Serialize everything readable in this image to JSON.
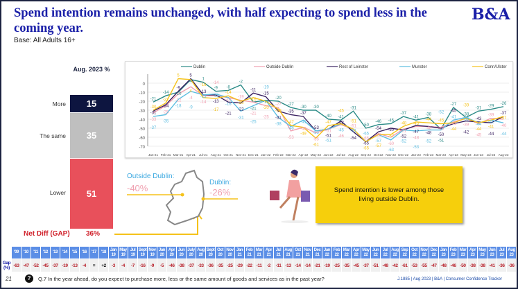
{
  "header": {
    "title": "Spend intention remains unchanged, with half expecting to spend less in the coming year.",
    "base": "Base: All Adults 16+",
    "logo": "B&A"
  },
  "summary": {
    "column_heading": "Aug. 2023 %",
    "rows": [
      {
        "label": "More",
        "value": "15",
        "color": "#0d1540"
      },
      {
        "label": "The same",
        "value": "35",
        "color": "#bfbfbf"
      },
      {
        "label": "Lower",
        "value": "51",
        "color": "#e8505b"
      }
    ],
    "net_label": "Net Diff (GAP)",
    "net_value": "36%"
  },
  "map": {
    "outside_label": "Outside Dublin:",
    "outside_value": "-40%",
    "dublin_label": "Dublin:",
    "dublin_value": "-26%"
  },
  "callout": "Spend intention is lower among those living outside Dublin.",
  "chart_data": {
    "type": "line",
    "ylim": [
      -70,
      10
    ],
    "yticks": [
      0,
      -10,
      -20,
      -30,
      -40,
      -50,
      -60,
      -70
    ],
    "legend": "top",
    "categories": [
      "Jan-21",
      "Feb-21",
      "Mar-21",
      "Apr-21",
      "Jul-21",
      "Aug-21",
      "Oct-21",
      "Nov-21",
      "Dec-21",
      "Jan-22",
      "Feb-22",
      "Mar-22",
      "Apr-22",
      "May-22",
      "Jun-22",
      "Jul-22",
      "Aug-22",
      "Sep-22",
      "Oct-22",
      "Nov-22",
      "Dec-22",
      "Jan-23",
      "Feb-23",
      "Mar-23",
      "Apr-23",
      "May-23",
      "Jun-23",
      "Jul-23",
      "Aug-23"
    ],
    "series": [
      {
        "name": "Dublin",
        "color": "#2a8a86",
        "values": [
          -21,
          -14,
          -10,
          4,
          1,
          -9,
          -8,
          -2,
          -21,
          -19,
          -20,
          -27,
          -30,
          -30,
          -40,
          -41,
          -31,
          -50,
          -46,
          -45,
          -37,
          -41,
          -38,
          -51,
          -27,
          -38,
          -31,
          -29,
          -26
        ]
      },
      {
        "name": "Outside Dublin",
        "color": "#f0a0b0",
        "values": [
          -33,
          -25,
          -12,
          -4,
          -14,
          -14,
          -16,
          -19,
          -21,
          -25,
          -27,
          -53,
          -49,
          -55,
          -51,
          -46,
          -51,
          -65,
          -56,
          -60,
          -51,
          -48,
          -48,
          -49,
          -43,
          -39,
          -45,
          -39,
          -40
        ]
      },
      {
        "name": "Rest of Leinster",
        "color": "#3a2060",
        "values": [
          -31,
          -24,
          -9,
          5,
          -13,
          -13,
          -21,
          -22,
          -11,
          -15,
          -31,
          -35,
          -37,
          -53,
          -51,
          -42,
          -54,
          -65,
          -54,
          -50,
          -52,
          -47,
          -48,
          -50,
          -45,
          -42,
          -43,
          -44,
          -37
        ]
      },
      {
        "name": "Munster",
        "color": "#5bbde0",
        "values": [
          -37,
          -35,
          -18,
          -9,
          -13,
          -12,
          -16,
          -31,
          -25,
          -19,
          -38,
          -48,
          -41,
          -53,
          -51,
          -45,
          -51,
          -65,
          -57,
          -63,
          -52,
          -53,
          -52,
          -52,
          -41,
          -38,
          -44,
          -41,
          -44
        ]
      },
      {
        "name": "Conn/Ulster",
        "color": "#f5c21a",
        "values": [
          -30,
          -22,
          5,
          4,
          -16,
          -17,
          -14,
          -20,
          -16,
          -20,
          -29,
          -47,
          -49,
          -61,
          -47,
          -45,
          -51,
          -65,
          -57,
          -57,
          -48,
          -43,
          -44,
          -45,
          -44,
          -39,
          -44,
          -41,
          -37
        ]
      }
    ]
  },
  "gap_table": {
    "row_label": "Gap (%)",
    "headers": [
      "'09",
      "'10",
      "'11",
      "'12",
      "'13",
      "'14",
      "'15",
      "'16",
      "'17",
      "'18",
      "Jan 19",
      "May 19",
      "Jul 19",
      "Sept 19",
      "Nov 19",
      "Jan 20",
      "Apr 20",
      "Jun 20",
      "July 20",
      "Aug 20",
      "Sept 20",
      "Oct 20",
      "Nov 20",
      "Jan 21",
      "Feb 21",
      "Mar 21",
      "Apr 21",
      "Jul 21",
      "Aug 21",
      "Oct 21",
      "Nov 21",
      "Dec 21",
      "Jan 22",
      "Feb 22",
      "Mar 22",
      "Apr 22",
      "May 22",
      "Jun 22",
      "Jul 22",
      "Aug 22",
      "Sep 22",
      "Oct 22",
      "Nov 22",
      "Dec 22",
      "Jan 23",
      "Feb 23",
      "Mar 23",
      "Apr 23",
      "May 23",
      "Jun 23",
      "Jul 23",
      "Aug 23"
    ],
    "values": [
      "-63",
      "-47",
      "-52",
      "-45",
      "-37",
      "-19",
      "-13",
      "-4",
      "=",
      "+2",
      "-3",
      "-4",
      "-7",
      "-16",
      "-9",
      "-5",
      "-46",
      "-38",
      "-37",
      "-33",
      "-36",
      "-35",
      "-25",
      "-29",
      "-22",
      "-11",
      "-2",
      "-11",
      "-13",
      "-14",
      "-14",
      "-21",
      "-19",
      "-25",
      "-35",
      "-45",
      "-37",
      "-51",
      "-48",
      "-42",
      "-61",
      "-53",
      "-55",
      "-47",
      "-48",
      "-46",
      "-50",
      "-38",
      "-38",
      "-41",
      "-36",
      "-36"
    ]
  },
  "footer": {
    "page": "21",
    "question": "Q.7 In the year ahead, do you expect to purchase more, less or the same amount of goods and services as in the past year?",
    "source": "J.1885 | Aug 2023 | B&A | Consumer Confidence Tracker",
    "help_icon": "question-circle-icon"
  }
}
